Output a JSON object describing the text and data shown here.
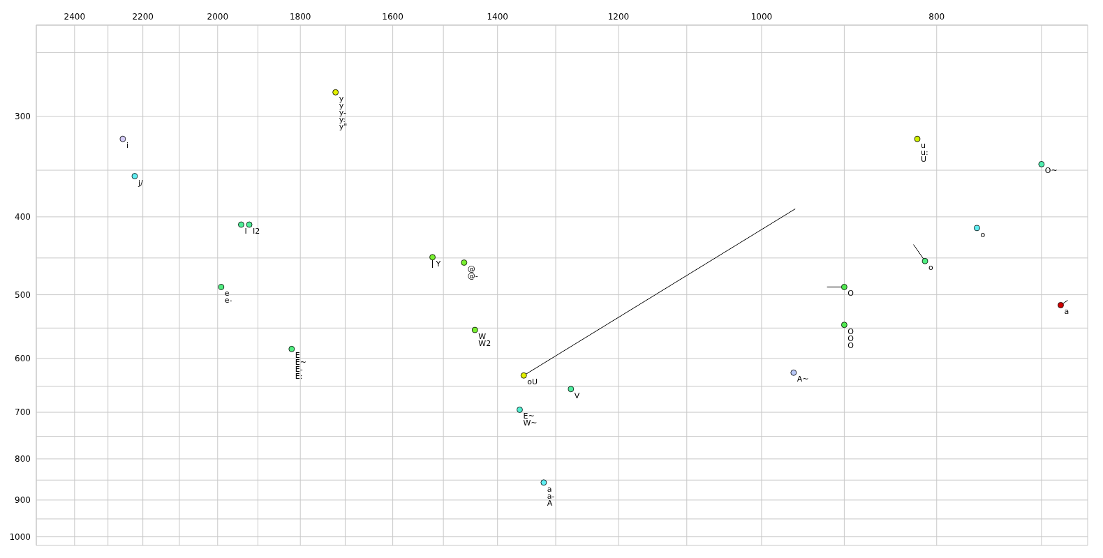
{
  "chart_data": {
    "type": "scatter",
    "log": "xy",
    "grid": true,
    "xlim": [
      2520,
      660
    ],
    "ylim": [
      1025,
      231
    ],
    "xticks": [
      2400,
      {
        "value": 2300,
        "label": null
      },
      2200,
      {
        "value": 2100,
        "label": null
      },
      2000,
      {
        "value": 1900,
        "label": null
      },
      1800,
      {
        "value": 1700,
        "label": null
      },
      1600,
      {
        "value": 1500,
        "label": null
      },
      1400,
      {
        "value": 1300,
        "label": null
      },
      1200,
      {
        "value": 1100,
        "label": null
      },
      1000,
      {
        "value": 900,
        "label": null
      },
      800,
      {
        "value": 700,
        "label": null
      }
    ],
    "yticks": [
      {
        "value": 250,
        "label": null
      },
      300,
      {
        "value": 350,
        "label": null
      },
      400,
      {
        "value": 450,
        "label": null
      },
      500,
      {
        "value": 550,
        "label": null
      },
      600,
      {
        "value": 650,
        "label": null
      },
      700,
      {
        "value": 750,
        "label": null
      },
      800,
      {
        "value": 850,
        "label": null
      },
      900,
      {
        "value": 950,
        "label": null
      },
      1000
    ],
    "series": [
      {
        "marker": "circle",
        "x": [
          2257,
          2223,
          1721,
          1941,
          1921,
          1991,
          1820,
          1521,
          1461,
          1441,
          1354,
          1275,
          1361,
          1320,
          820,
          700,
          760,
          812,
          900,
          900,
          960,
          683
        ],
        "values": [
          320,
          356,
          280,
          409,
          409,
          489,
          584,
          449,
          456,
          553,
          630,
          655,
          695,
          856,
          320,
          344,
          413,
          454,
          489,
          545,
          625,
          515
        ],
        "colors": [
          "#d4ccf8",
          "#60eef2",
          "#e2f000",
          "#50ee98",
          "#50ee98",
          "#50ee80",
          "#50ee80",
          "#78f030",
          "#78f030",
          "#78f030",
          "#e2f000",
          "#50eea0",
          "#50eed0",
          "#60eef2",
          "#d0f000",
          "#50eeb0",
          "#60eef2",
          "#50ee80",
          "#50e850",
          "#50e850",
          "#b8c8f8",
          "#d00000"
        ]
      },
      {
        "type": "line",
        "marker": "none",
        "line_style": "solid",
        "color": "#000000",
        "x": [
          1521,
          1521
        ],
        "values": [
          449,
          463
        ]
      },
      {
        "type": "line",
        "marker": "none",
        "line_style": "solid",
        "color": "#000000",
        "x": [
          1354,
          958
        ],
        "values": [
          630,
          391
        ]
      },
      {
        "type": "line",
        "marker": "none",
        "line_style": "solid",
        "color": "#000000",
        "x": [
          812,
          824
        ],
        "values": [
          454,
          433
        ]
      },
      {
        "type": "line",
        "marker": "none",
        "line_style": "solid",
        "color": "#000000",
        "x": [
          900,
          920
        ],
        "values": [
          489,
          489
        ]
      },
      {
        "type": "line",
        "marker": "none",
        "line_style": "solid",
        "color": "#000000",
        "x": [
          683,
          677
        ],
        "values": [
          515,
          508
        ]
      }
    ],
    "annotations": [
      {
        "text": "i",
        "x": 2257,
        "y": 320
      },
      {
        "text": "j/",
        "x": 2223,
        "y": 356
      },
      {
        "text": "y\ny\ny-\ny:\ny\"",
        "x": 1721,
        "y": 280
      },
      {
        "text": "I",
        "x": 1941,
        "y": 409
      },
      {
        "text": "I2",
        "x": 1921,
        "y": 409
      },
      {
        "text": "e\ne-",
        "x": 1991,
        "y": 489
      },
      {
        "text": "E\nE~\nE-\nE:",
        "x": 1820,
        "y": 584
      },
      {
        "text": "Y",
        "x": 1521,
        "y": 449
      },
      {
        "text": "@\n@-",
        "x": 1461,
        "y": 456
      },
      {
        "text": "W\nW2",
        "x": 1441,
        "y": 553
      },
      {
        "text": "oU",
        "x": 1354,
        "y": 630
      },
      {
        "text": "V",
        "x": 1275,
        "y": 655
      },
      {
        "text": "E~\nW~",
        "x": 1361,
        "y": 695
      },
      {
        "text": "a\na-\nA",
        "x": 1320,
        "y": 856
      },
      {
        "text": "u\nu:\nU",
        "x": 820,
        "y": 320
      },
      {
        "text": "O~",
        "x": 700,
        "y": 344
      },
      {
        "text": "o",
        "x": 760,
        "y": 413
      },
      {
        "text": "o",
        "x": 812,
        "y": 454
      },
      {
        "text": "O",
        "x": 900,
        "y": 489
      },
      {
        "text": "O\nO\nO",
        "x": 900,
        "y": 545
      },
      {
        "text": "A~",
        "x": 960,
        "y": 625
      },
      {
        "text": "a",
        "x": 683,
        "y": 515
      }
    ]
  }
}
